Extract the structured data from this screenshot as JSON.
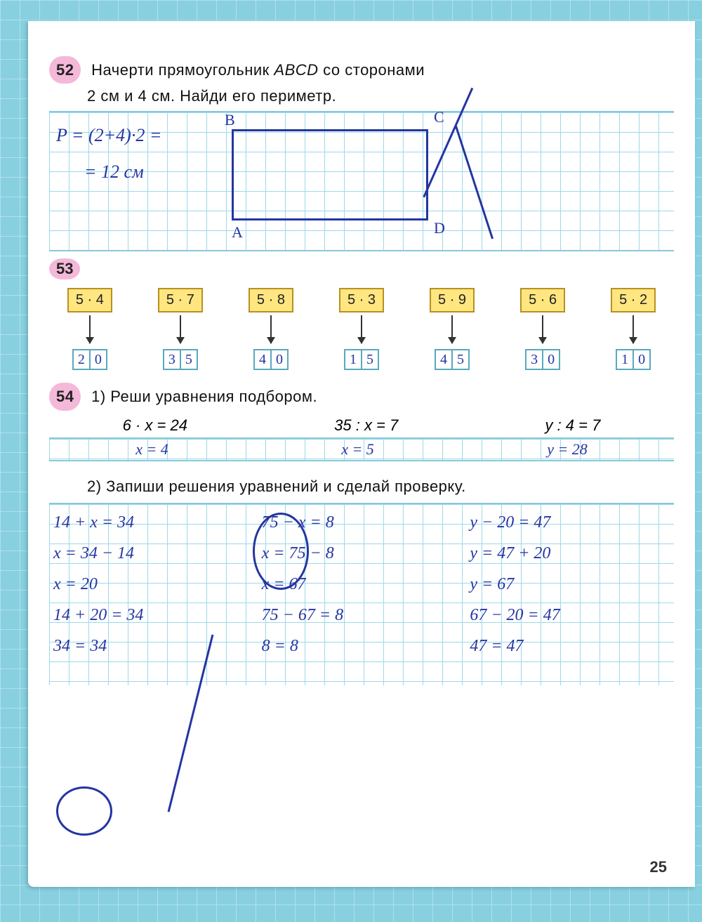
{
  "page_number": "25",
  "ex52": {
    "num": "52",
    "text_l1": "Начерти прямоугольник",
    "text_abcd": "ABCD",
    "text_l1b": "со сторонами",
    "text_l2": "2 см и 4 см. Найди его периметр.",
    "hand_p1": "P = (2+4)·2 =",
    "hand_p2": "= 12 см",
    "lbl_A": "A",
    "lbl_B": "B",
    "lbl_C": "C",
    "lbl_D": "D"
  },
  "ex53": {
    "num": "53",
    "items": [
      {
        "q": "5 · 4",
        "a": [
          "2",
          "0"
        ]
      },
      {
        "q": "5 · 7",
        "a": [
          "3",
          "5"
        ]
      },
      {
        "q": "5 · 8",
        "a": [
          "4",
          "0"
        ]
      },
      {
        "q": "5 · 3",
        "a": [
          "1",
          "5"
        ]
      },
      {
        "q": "5 · 9",
        "a": [
          "4",
          "5"
        ]
      },
      {
        "q": "5 · 6",
        "a": [
          "3",
          "0"
        ]
      },
      {
        "q": "5 · 2",
        "a": [
          "1",
          "0"
        ]
      }
    ]
  },
  "ex54": {
    "num": "54",
    "part1_title": "1) Реши уравнения подбором.",
    "eqs1": [
      "6 · x = 24",
      "35 : x = 7",
      "y : 4 = 7"
    ],
    "ans1": [
      "x = 4",
      "x = 5",
      "y = 28"
    ],
    "part2_title": "2) Запиши решения уравнений и сделай проверку.",
    "cols": [
      {
        "lines": [
          "14 + x = 34",
          "x = 34 − 14",
          "x = 20",
          "14 + 20 = 34",
          "34 = 34"
        ]
      },
      {
        "lines": [
          "75 − x = 8",
          "x = 75 − 8",
          "x = 67",
          "75 − 67 = 8",
          "8 = 8"
        ]
      },
      {
        "lines": [
          "y − 20 = 47",
          "y = 47 + 20",
          "y = 67",
          "67 − 20 = 47",
          "47 = 47"
        ]
      }
    ]
  },
  "colors": {
    "page_bg": "#ffffff",
    "outer_bg": "#88d0e0",
    "grid_line": "#9cd9ea",
    "pink_badge": "#f4b8d8",
    "yellow_box": "#ffe680",
    "yellow_border": "#b89020",
    "answer_cell_border": "#5aa8c0",
    "handwriting": "#2435a1"
  }
}
